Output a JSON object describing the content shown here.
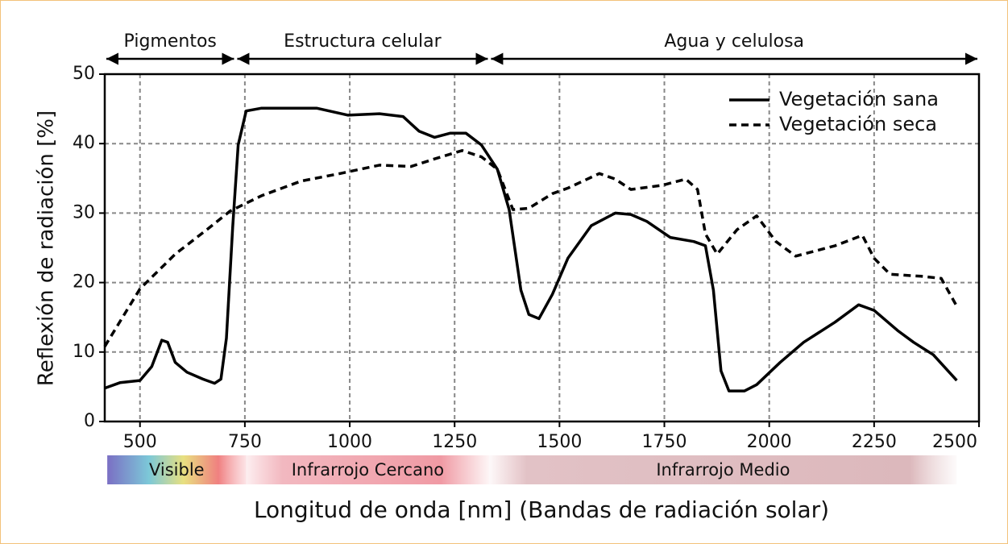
{
  "chart_data": {
    "type": "line",
    "x_label": "Longitud de onda [nm] (Bandas de radiación solar)",
    "y_label": "Reflexión de radiación [%]",
    "xlim": [
      416,
      2500
    ],
    "ylim": [
      0,
      50
    ],
    "xticks": [
      500,
      750,
      1000,
      1250,
      1500,
      1750,
      2000,
      2250,
      2500
    ],
    "yticks": [
      0,
      10,
      20,
      30,
      40,
      50
    ],
    "grid": true,
    "legend": "upper right",
    "regions": [
      {
        "label": "Pigmentos",
        "range": [
          416,
          728
        ]
      },
      {
        "label": "Estructura celular",
        "range": [
          728,
          1333
        ]
      },
      {
        "label": "Agua y celulosa",
        "range": [
          1333,
          2500
        ]
      }
    ],
    "bands": [
      {
        "label": "Visible",
        "range": [
          422,
          753
        ]
      },
      {
        "label": "Infrarrojo Cercano",
        "range": [
          753,
          1333
        ]
      },
      {
        "label": "Infrarrojo Medio",
        "range": [
          1333,
          2447
        ]
      }
    ],
    "series": [
      {
        "name": "Vegetación sana",
        "color": "#000000",
        "style": "solid",
        "x": [
          416,
          453,
          500,
          528,
          552,
          566,
          584,
          612,
          650,
          678,
          693,
          706,
          721,
          734,
          753,
          790,
          921,
          996,
          1071,
          1127,
          1165,
          1202,
          1239,
          1277,
          1314,
          1352,
          1380,
          1408,
          1427,
          1451,
          1483,
          1520,
          1576,
          1633,
          1670,
          1708,
          1764,
          1820,
          1848,
          1867,
          1885,
          1904,
          1941,
          1970,
          2026,
          2082,
          2157,
          2213,
          2250,
          2306,
          2344,
          2391,
          2447
        ],
        "values": [
          4.8,
          5.6,
          5.9,
          7.9,
          11.7,
          11.4,
          8.5,
          7.1,
          6.1,
          5.5,
          6.1,
          12,
          28,
          39.8,
          44.7,
          45.1,
          45.1,
          44.1,
          44.3,
          43.9,
          41.8,
          40.9,
          41.5,
          41.5,
          39.8,
          36.3,
          30.5,
          18.9,
          15.4,
          14.8,
          18.3,
          23.5,
          28.2,
          30.0,
          29.8,
          28.8,
          26.5,
          25.9,
          25.3,
          18.9,
          7.3,
          4.4,
          4.4,
          5.3,
          8.5,
          11.4,
          14.3,
          16.8,
          16.0,
          13.1,
          11.4,
          9.6,
          5.9
        ]
      },
      {
        "name": "Vegetación seca",
        "color": "#000000",
        "style": "dashed",
        "x": [
          416,
          500,
          584,
          659,
          715,
          790,
          884,
          977,
          1071,
          1146,
          1202,
          1268,
          1314,
          1352,
          1389,
          1427,
          1483,
          1520,
          1595,
          1633,
          1670,
          1745,
          1801,
          1829,
          1848,
          1876,
          1923,
          1970,
          2016,
          2063,
          2157,
          2222,
          2250,
          2288,
          2363,
          2410,
          2447
        ],
        "values": [
          10.8,
          19.1,
          24.1,
          27.6,
          30.3,
          32.5,
          34.6,
          35.7,
          36.9,
          36.7,
          37.8,
          39.0,
          38.1,
          36.3,
          30.5,
          30.7,
          32.8,
          33.6,
          35.7,
          34.9,
          33.4,
          34.0,
          34.9,
          33.4,
          27.0,
          24.1,
          27.6,
          29.6,
          25.9,
          23.8,
          25.3,
          26.8,
          23.5,
          21.2,
          20.9,
          20.6,
          16.6
        ]
      }
    ]
  }
}
